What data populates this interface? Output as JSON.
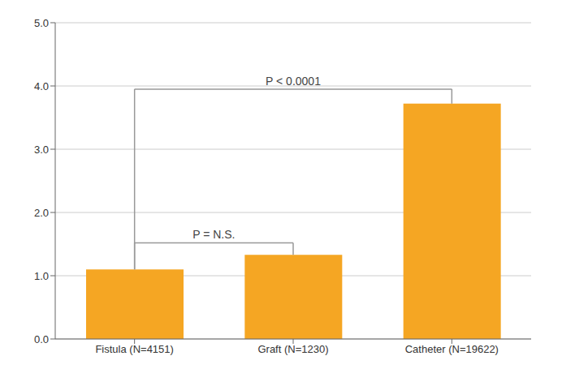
{
  "chart_data": {
    "type": "bar",
    "categories": [
      "Fistula (N=4151)",
      "Graft (N=1230)",
      "Catheter (N=19622)"
    ],
    "values": [
      1.1,
      1.33,
      3.72
    ],
    "color": "#F5A623",
    "ylim": [
      0,
      5.0
    ],
    "yticks": [
      {
        "value": 0,
        "label": "0.0"
      },
      {
        "value": 1,
        "label": "1.0"
      },
      {
        "value": 2,
        "label": "2.0"
      },
      {
        "value": 3,
        "label": "3.0"
      },
      {
        "value": 4,
        "label": "4.0"
      },
      {
        "value": 5,
        "label": "5.0"
      }
    ],
    "grid": true,
    "annotations": [
      {
        "text": "P = N.S.",
        "from": "Fistula (N=4151)",
        "to": "Graft (N=1230)",
        "y": 1.52
      },
      {
        "text": "P < 0.0001",
        "from": "Fistula (N=4151)",
        "to": "Catheter (N=19622)",
        "y": 3.95
      }
    ]
  }
}
